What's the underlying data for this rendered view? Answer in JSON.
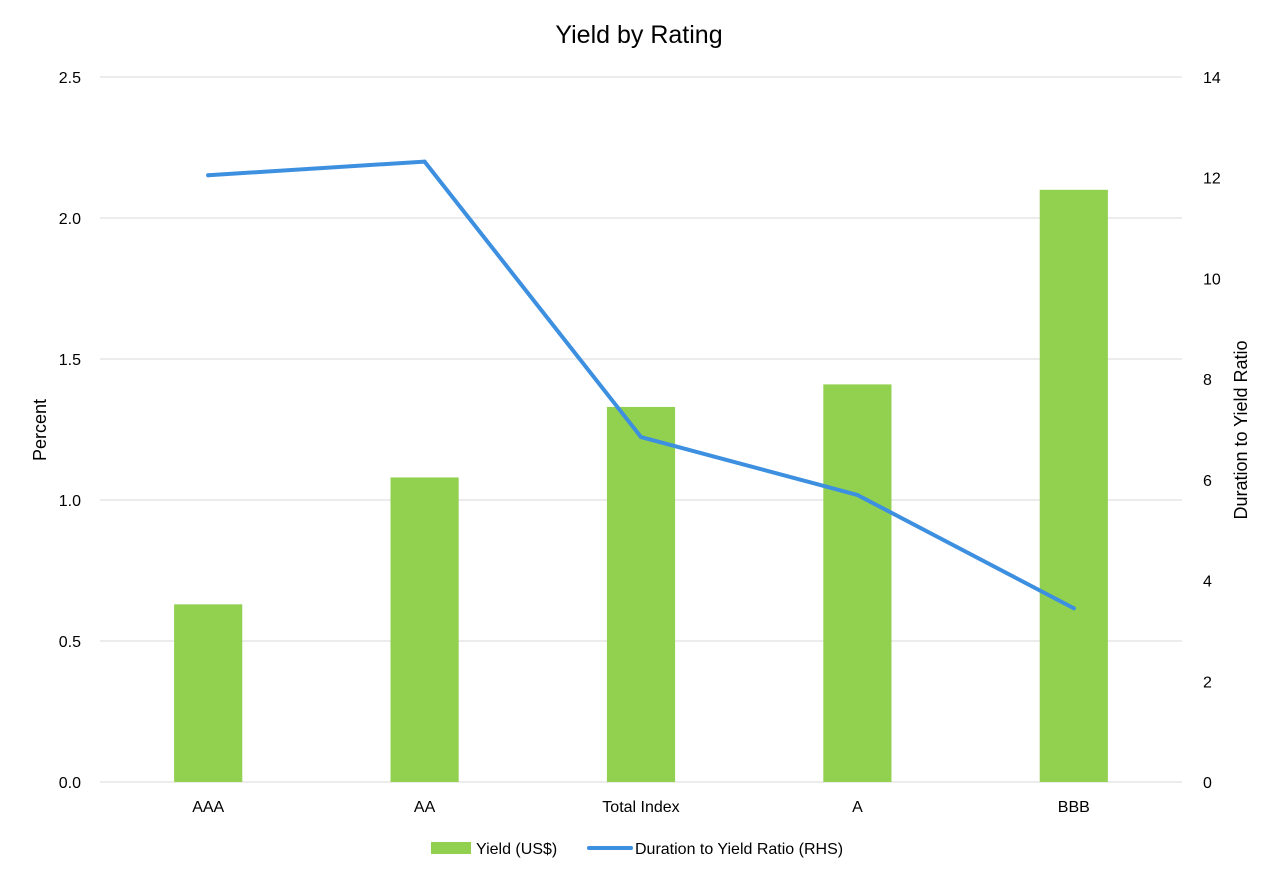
{
  "chart_data": {
    "type": "bar",
    "title": "Yield by Rating",
    "categories": [
      "AAA",
      "AA",
      "Total Index",
      "A",
      "BBB"
    ],
    "series": [
      {
        "name": "Yield (US$)",
        "type": "bar",
        "axis": "left",
        "color": "#92d050",
        "values": [
          0.63,
          1.08,
          1.33,
          1.41,
          2.1
        ]
      },
      {
        "name": "Duration to Yield Ratio (RHS)",
        "type": "line",
        "axis": "right",
        "color": "#3d8fe0",
        "values": [
          12.05,
          12.32,
          6.85,
          5.7,
          3.45
        ]
      }
    ],
    "ylabel": "Percent",
    "y2label": "Duration to Yield Ratio",
    "ylim": [
      0,
      2.5
    ],
    "y2lim": [
      0,
      14
    ],
    "yticks": [
      "0.0",
      "0.5",
      "1.0",
      "1.5",
      "2.0",
      "2.5"
    ],
    "y2ticks": [
      "0",
      "2",
      "4",
      "6",
      "8",
      "10",
      "12",
      "14"
    ],
    "grid": true,
    "legend_position": "bottom"
  }
}
